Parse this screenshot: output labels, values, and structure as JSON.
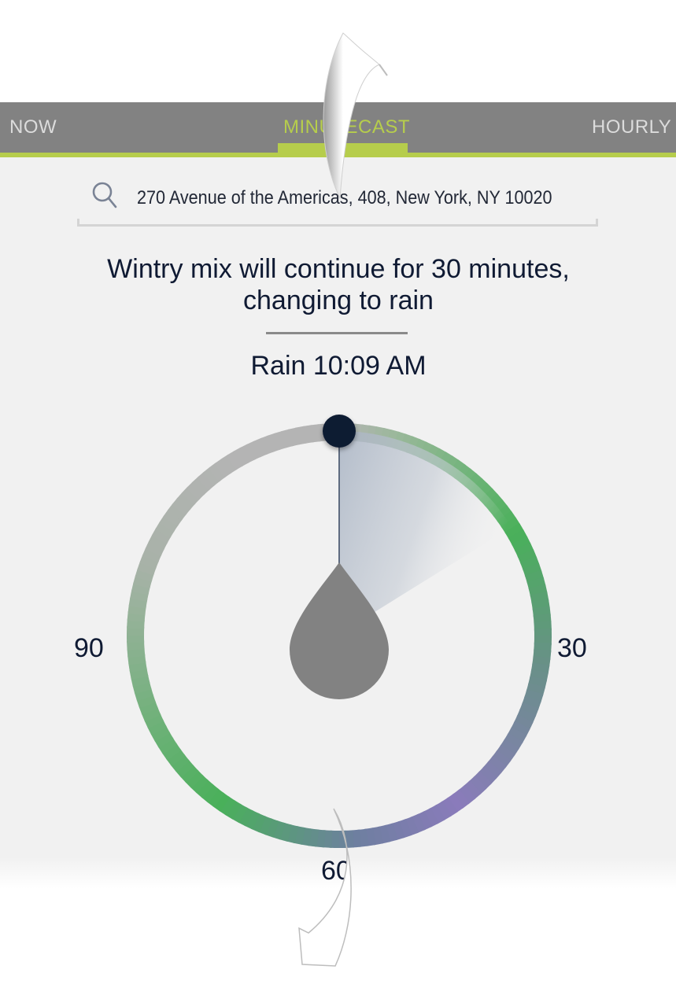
{
  "tabs": [
    {
      "label": "NOW",
      "selected": false
    },
    {
      "label": "MINUTECAST",
      "selected": true
    },
    {
      "label": "HOURLY",
      "selected": false
    }
  ],
  "search": {
    "icon": "search-icon",
    "value": "270 Avenue of the Americas, 408, New York, NY 10020"
  },
  "forecast": {
    "headline": "Wintry mix will continue for 30 minutes, changing to rain",
    "precip_start": "Rain 10:09 AM"
  },
  "dial": {
    "labels": {
      "right": "30",
      "bottom": "60",
      "left": "90"
    },
    "precip_icon": "raindrop-icon",
    "colors": {
      "no_precip": "#b4b4b4",
      "rain": "#49b05a",
      "mix": "#8a7bbb",
      "accent": "#b6cd4c",
      "needle_knob": "#0f1a33",
      "drop": "#828282"
    }
  }
}
